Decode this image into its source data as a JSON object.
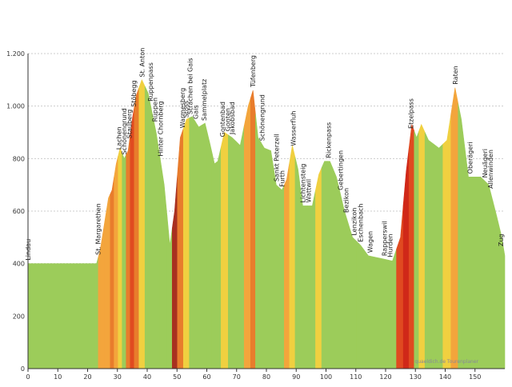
{
  "chart_data": {
    "type": "area",
    "source": "quaeldich.de Tourenplaner",
    "x": [
      0,
      23,
      24.2,
      27,
      28.2,
      29.6,
      30.9,
      32.3,
      33.6,
      35,
      36.3,
      38.2,
      40.3,
      43,
      45.7,
      47.6,
      49.2,
      51.1,
      53.2,
      55.1,
      57.3,
      59.4,
      61,
      62.6,
      63.7,
      65.9,
      68.5,
      71.2,
      73.9,
      75.5,
      77.2,
      79.3,
      81.5,
      83.3,
      85.2,
      86.8,
      88.7,
      90.6,
      92.2,
      95.4,
      97.6,
      99.5,
      101.3,
      103.5,
      106.2,
      108.9,
      111.6,
      114.2,
      118.3,
      122.3,
      125,
      126.9,
      128.8,
      130.4,
      132,
      134.4,
      137.9,
      140.6,
      143.3,
      145.4,
      147.8,
      151.9,
      154.6,
      157.3,
      160.5
    ],
    "values": [
      400,
      400,
      450,
      650,
      680,
      780,
      840,
      800,
      830,
      950,
      1040,
      1100,
      1050,
      900,
      700,
      470,
      600,
      880,
      950,
      960,
      920,
      935,
      860,
      780,
      790,
      900,
      880,
      850,
      1000,
      1060,
      880,
      840,
      830,
      700,
      680,
      720,
      850,
      760,
      620,
      620,
      740,
      790,
      790,
      730,
      600,
      500,
      470,
      430,
      420,
      410,
      500,
      750,
      930,
      880,
      930,
      870,
      840,
      870,
      1070,
      950,
      730,
      730,
      700,
      580,
      430
    ],
    "colors": [
      "#9ccc5a",
      "#9ccc5a",
      "#f3a53c",
      "#f3a53c",
      "#e87c2c",
      "#f3a53c",
      "#f0d040",
      "#9ccc5a",
      "#e87c2c",
      "#e04a20",
      "#e87c2c",
      "#f0d040",
      "#9ccc5a",
      "#9ccc5a",
      "#9ccc5a",
      "#9ccc5a",
      "#a83020",
      "#e87c2c",
      "#f0d040",
      "#9ccc5a",
      "#9ccc5a",
      "#9ccc5a",
      "#9ccc5a",
      "#9ccc5a",
      "#9ccc5a",
      "#f0d040",
      "#9ccc5a",
      "#9ccc5a",
      "#f3a53c",
      "#e87c2c",
      "#9ccc5a",
      "#9ccc5a",
      "#9ccc5a",
      "#9ccc5a",
      "#9ccc5a",
      "#f3a53c",
      "#f0d040",
      "#9ccc5a",
      "#9ccc5a",
      "#9ccc5a",
      "#f0d040",
      "#9ccc5a",
      "#9ccc5a",
      "#9ccc5a",
      "#9ccc5a",
      "#9ccc5a",
      "#9ccc5a",
      "#9ccc5a",
      "#9ccc5a",
      "#9ccc5a",
      "#e04a20",
      "#d02818",
      "#e04a20",
      "#9ccc5a",
      "#f0d040",
      "#9ccc5a",
      "#9ccc5a",
      "#f0d040",
      "#f3a53c",
      "#9ccc5a",
      "#9ccc5a",
      "#9ccc5a",
      "#9ccc5a",
      "#9ccc5a",
      "#9ccc5a"
    ],
    "xlim": [
      0,
      160
    ],
    "ylim": [
      0,
      1200
    ],
    "xticks": [
      0,
      10,
      20,
      30,
      40,
      50,
      60,
      70,
      80,
      90,
      100,
      110,
      120,
      130,
      140,
      150
    ],
    "yticks": [
      0,
      200,
      400,
      600,
      800,
      {
        "value": 1000,
        "label": "1.000"
      },
      {
        "value": 1200,
        "label": "1.200"
      }
    ],
    "grid": true,
    "annotations": [
      {
        "x": 0,
        "text": "Lindau"
      },
      {
        "x": 23.5,
        "text": "St. Margarethen"
      },
      {
        "x": 30.5,
        "text": "Lachen"
      },
      {
        "x": 32.2,
        "text": "Schönengrund"
      },
      {
        "x": 34,
        "text": "Stauberg"
      },
      {
        "x": 35.5,
        "text": "Stöbegg"
      },
      {
        "x": 38.3,
        "text": "St. Anton"
      },
      {
        "x": 41.1,
        "text": "Ruppenpass"
      },
      {
        "x": 42.5,
        "text": "Rüppen"
      },
      {
        "x": 44.4,
        "text": "Hinter Chornberg"
      },
      {
        "x": 51.8,
        "text": "Warmesberg"
      },
      {
        "x": 53,
        "text": "Stoss"
      },
      {
        "x": 54.3,
        "text": "Strachen bei Gais"
      },
      {
        "x": 56.3,
        "text": "Gais"
      },
      {
        "x": 59,
        "text": "Sammelplatz"
      },
      {
        "x": 65.3,
        "text": "Gontenbad"
      },
      {
        "x": 67,
        "text": "Gonten"
      },
      {
        "x": 68.5,
        "text": "Jakobsbad"
      },
      {
        "x": 75.5,
        "text": "Tüfenberg"
      },
      {
        "x": 78.5,
        "text": "Schönengrund"
      },
      {
        "x": 83.3,
        "text": "Sankt Peterzell"
      },
      {
        "x": 85.2,
        "text": "Furth"
      },
      {
        "x": 89,
        "text": "Wasserfluh"
      },
      {
        "x": 92.2,
        "text": "Lichtensteig"
      },
      {
        "x": 94.1,
        "text": "Wattwil"
      },
      {
        "x": 100.8,
        "text": "Rickenpass"
      },
      {
        "x": 104.8,
        "text": "Gebertingen"
      },
      {
        "x": 106.7,
        "text": "Bezikon"
      },
      {
        "x": 109.4,
        "text": "Lenzikon"
      },
      {
        "x": 111.6,
        "text": "Eschenbach"
      },
      {
        "x": 114.8,
        "text": "Wagen"
      },
      {
        "x": 119.6,
        "text": "Rapperswil"
      },
      {
        "x": 121.5,
        "text": "Hurden"
      },
      {
        "x": 128.5,
        "text": "Etzelpass"
      },
      {
        "x": 143.3,
        "text": "Raten"
      },
      {
        "x": 148.3,
        "text": "Oberägeri"
      },
      {
        "x": 153.3,
        "text": "Neuägeri"
      },
      {
        "x": 155.2,
        "text": "Allenwinden"
      },
      {
        "x": 160,
        "text": "Zug"
      }
    ]
  }
}
